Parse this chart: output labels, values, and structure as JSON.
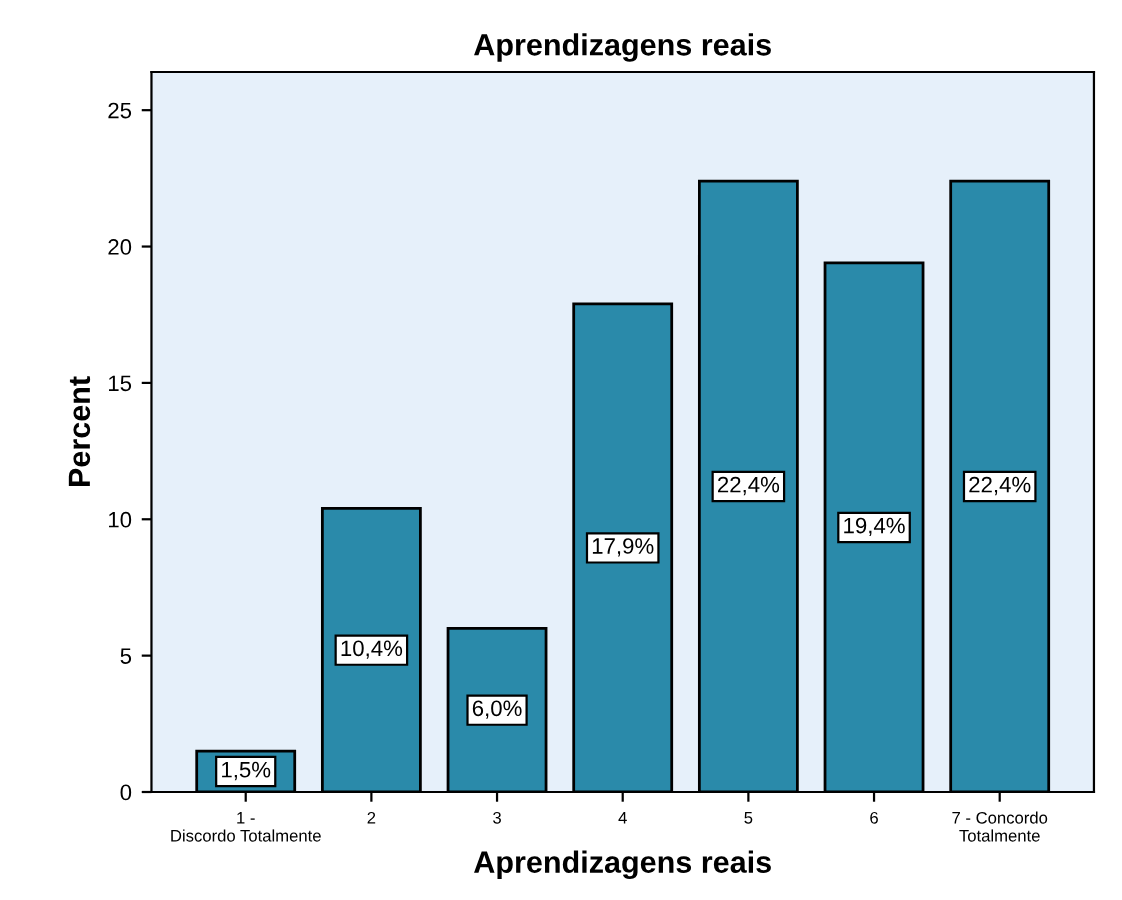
{
  "chart_data": {
    "type": "bar",
    "title": "Aprendizagens reais",
    "xlabel": "Aprendizagens reais",
    "ylabel": "Percent",
    "categories": [
      "1 -\nDiscordo Totalmente",
      "2",
      "3",
      "4",
      "5",
      "6",
      "7 - Concordo\nTotalmente"
    ],
    "values": [
      1.5,
      10.4,
      6.0,
      17.9,
      22.4,
      19.4,
      22.4
    ],
    "value_labels": [
      "1,5%",
      "10,4%",
      "6,0%",
      "17,9%",
      "22,4%",
      "19,4%",
      "22,4%"
    ],
    "color": "#2a8aaa",
    "ylim": [
      0,
      26.4
    ],
    "yticks": [
      0,
      5,
      10,
      15,
      20,
      25
    ],
    "grid": false,
    "legend": false
  }
}
